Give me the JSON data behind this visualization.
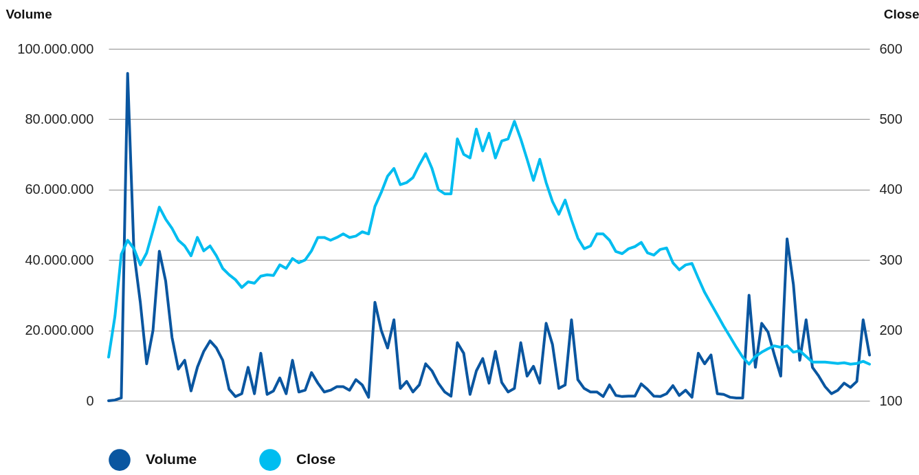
{
  "chart_data": {
    "type": "line",
    "ylabel": "Volume",
    "y2label": "Close",
    "categories": [
      null,
      null,
      null,
      null,
      null,
      null,
      null,
      null,
      null,
      null,
      null,
      null,
      null,
      null,
      null,
      null,
      null,
      null,
      null,
      null,
      null,
      null,
      null,
      null,
      null,
      null,
      null,
      null,
      null,
      null,
      null,
      null,
      null,
      null,
      null,
      null,
      null,
      null,
      null,
      null,
      null,
      null,
      null,
      null,
      null,
      null,
      null,
      null,
      null,
      null,
      null,
      null,
      null,
      null,
      null,
      null,
      null,
      null,
      null,
      null,
      null,
      null,
      null,
      null,
      null,
      null,
      null,
      null,
      null,
      null,
      null,
      null,
      null,
      null,
      null,
      null,
      null,
      null,
      null,
      null,
      null,
      null,
      null,
      null,
      null,
      null,
      null,
      null,
      null,
      null,
      null,
      null,
      null,
      null,
      null,
      null,
      null,
      null,
      null,
      null,
      null,
      null,
      null,
      null,
      null,
      null,
      null,
      null,
      null,
      null,
      null,
      null,
      null,
      null,
      null,
      null,
      null,
      null,
      null,
      null,
      null
    ],
    "series": [
      {
        "name": "Volume",
        "color": "#0a56a0",
        "values": [
          0,
          200000,
          800000,
          93000000,
          42000000,
          28000000,
          10500000,
          20000000,
          42500000,
          34000000,
          18000000,
          9000000,
          11500000,
          2800000,
          9500000,
          14000000,
          17000000,
          15000000,
          11500000,
          3300000,
          1200000,
          2000000,
          9500000,
          2000000,
          13500000,
          1800000,
          2800000,
          6500000,
          2000000,
          11500000,
          2500000,
          3000000,
          8000000,
          5000000,
          2500000,
          3000000,
          4000000,
          4000000,
          3000000,
          6000000,
          4500000,
          1000000,
          28000000,
          20000000,
          15000000,
          23000000,
          3500000,
          5500000,
          2500000,
          4500000,
          10500000,
          8500000,
          5000000,
          2500000,
          1300000,
          16500000,
          13500000,
          1800000,
          8500000,
          12000000,
          5000000,
          14000000,
          5200000,
          2500000,
          3500000,
          16500000,
          7000000,
          9800000,
          5000000,
          22000000,
          16000000,
          3500000,
          4500000,
          23000000,
          6000000,
          3500000,
          2500000,
          2500000,
          1200000,
          4500000,
          1500000,
          1200000,
          1300000,
          1300000,
          4800000,
          3200000,
          1300000,
          1200000,
          2000000,
          4300000,
          1500000,
          3000000,
          1000000,
          13500000,
          10500000,
          13000000,
          2000000,
          1800000,
          1000000,
          800000,
          800000,
          30000000,
          9500000,
          22000000,
          19500000,
          13000000,
          7000000,
          46000000,
          33000000,
          11500000,
          23000000,
          9500000,
          7000000,
          4000000,
          2000000,
          3000000,
          5000000,
          3800000,
          5500000,
          23000000,
          13000000
        ]
      },
      {
        "name": "Close",
        "color": "#00bdf0",
        "axis": "y2",
        "values": [
          162,
          220,
          308,
          328,
          316,
          293,
          310,
          342,
          375,
          358,
          345,
          328,
          320,
          306,
          332,
          313,
          320,
          306,
          288,
          279,
          272,
          261,
          269,
          267,
          277,
          279,
          278,
          293,
          288,
          302,
          296,
          300,
          313,
          332,
          332,
          328,
          332,
          337,
          332,
          334,
          340,
          337,
          376,
          396,
          419,
          430,
          407,
          410,
          417,
          435,
          451,
          430,
          400,
          394,
          394,
          472,
          450,
          445,
          486,
          455,
          480,
          445,
          469,
          472,
          497,
          472,
          443,
          413,
          443,
          410,
          383,
          365,
          385,
          357,
          331,
          316,
          320,
          337,
          337,
          328,
          312,
          309,
          316,
          319,
          325,
          310,
          307,
          315,
          317,
          296,
          286,
          293,
          295,
          274,
          254,
          238,
          222,
          206,
          191,
          176,
          162,
          152,
          163,
          169,
          174,
          178,
          176,
          178,
          169,
          171,
          163,
          155,
          155,
          155,
          154,
          153,
          154,
          152,
          153,
          156,
          152
        ]
      }
    ],
    "ylim": [
      0,
      100000000
    ],
    "yticks": [
      0,
      {
        "value": 20000000,
        "label": "20.000.000"
      },
      {
        "value": 40000000,
        "label": "40.000.000"
      },
      {
        "value": 60000000,
        "label": "60.000.000"
      },
      {
        "value": 80000000,
        "label": "80.000.000"
      },
      {
        "value": 100000000,
        "label": "100.000.000"
      }
    ],
    "y2lim": [
      100,
      600
    ],
    "y2ticks": [
      100,
      200,
      300,
      400,
      500,
      600
    ],
    "grid": "y",
    "legend": "bottom"
  }
}
